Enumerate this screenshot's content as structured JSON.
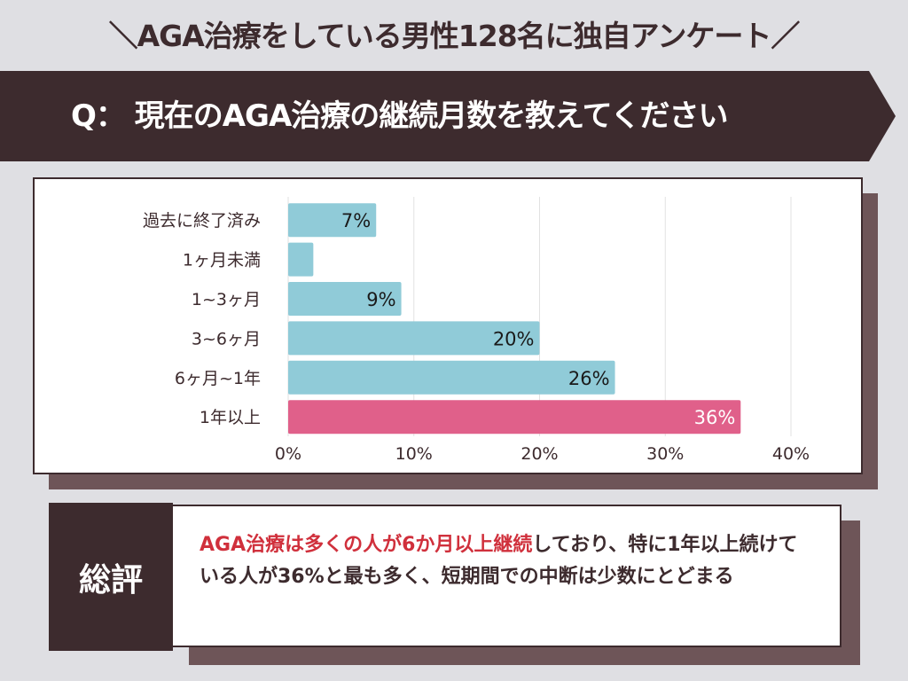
{
  "header": {
    "title": "＼AGA治療をしている男性128名に独自アンケート／",
    "question": "Q： 現在のAGA治療の継続月数を教えてください"
  },
  "chart_data": {
    "type": "bar",
    "orientation": "horizontal",
    "categories": [
      "過去に終了済み",
      "1ヶ月未満",
      "1~3ヶ月",
      "3~6ヶ月",
      "6ヶ月~1年",
      "1年以上"
    ],
    "values": [
      7,
      2,
      9,
      20,
      26,
      36
    ],
    "labels": [
      "7%",
      "",
      "9%",
      "20%",
      "26%",
      "36%"
    ],
    "xlim": [
      0,
      40
    ],
    "xticks": [
      "0%",
      "10%",
      "20%",
      "30%",
      "40%"
    ],
    "colors": {
      "default": "#90cbd8",
      "highlight": "#e0608a"
    },
    "highlight_index": 5,
    "grid": true
  },
  "summary": {
    "label": "総評",
    "highlight": "AGA治療は多くの人が6か月以上継続",
    "text": "しており、特に1年以上続けている人が36%と最も多く、短期間での中断は少数にとどまる"
  }
}
